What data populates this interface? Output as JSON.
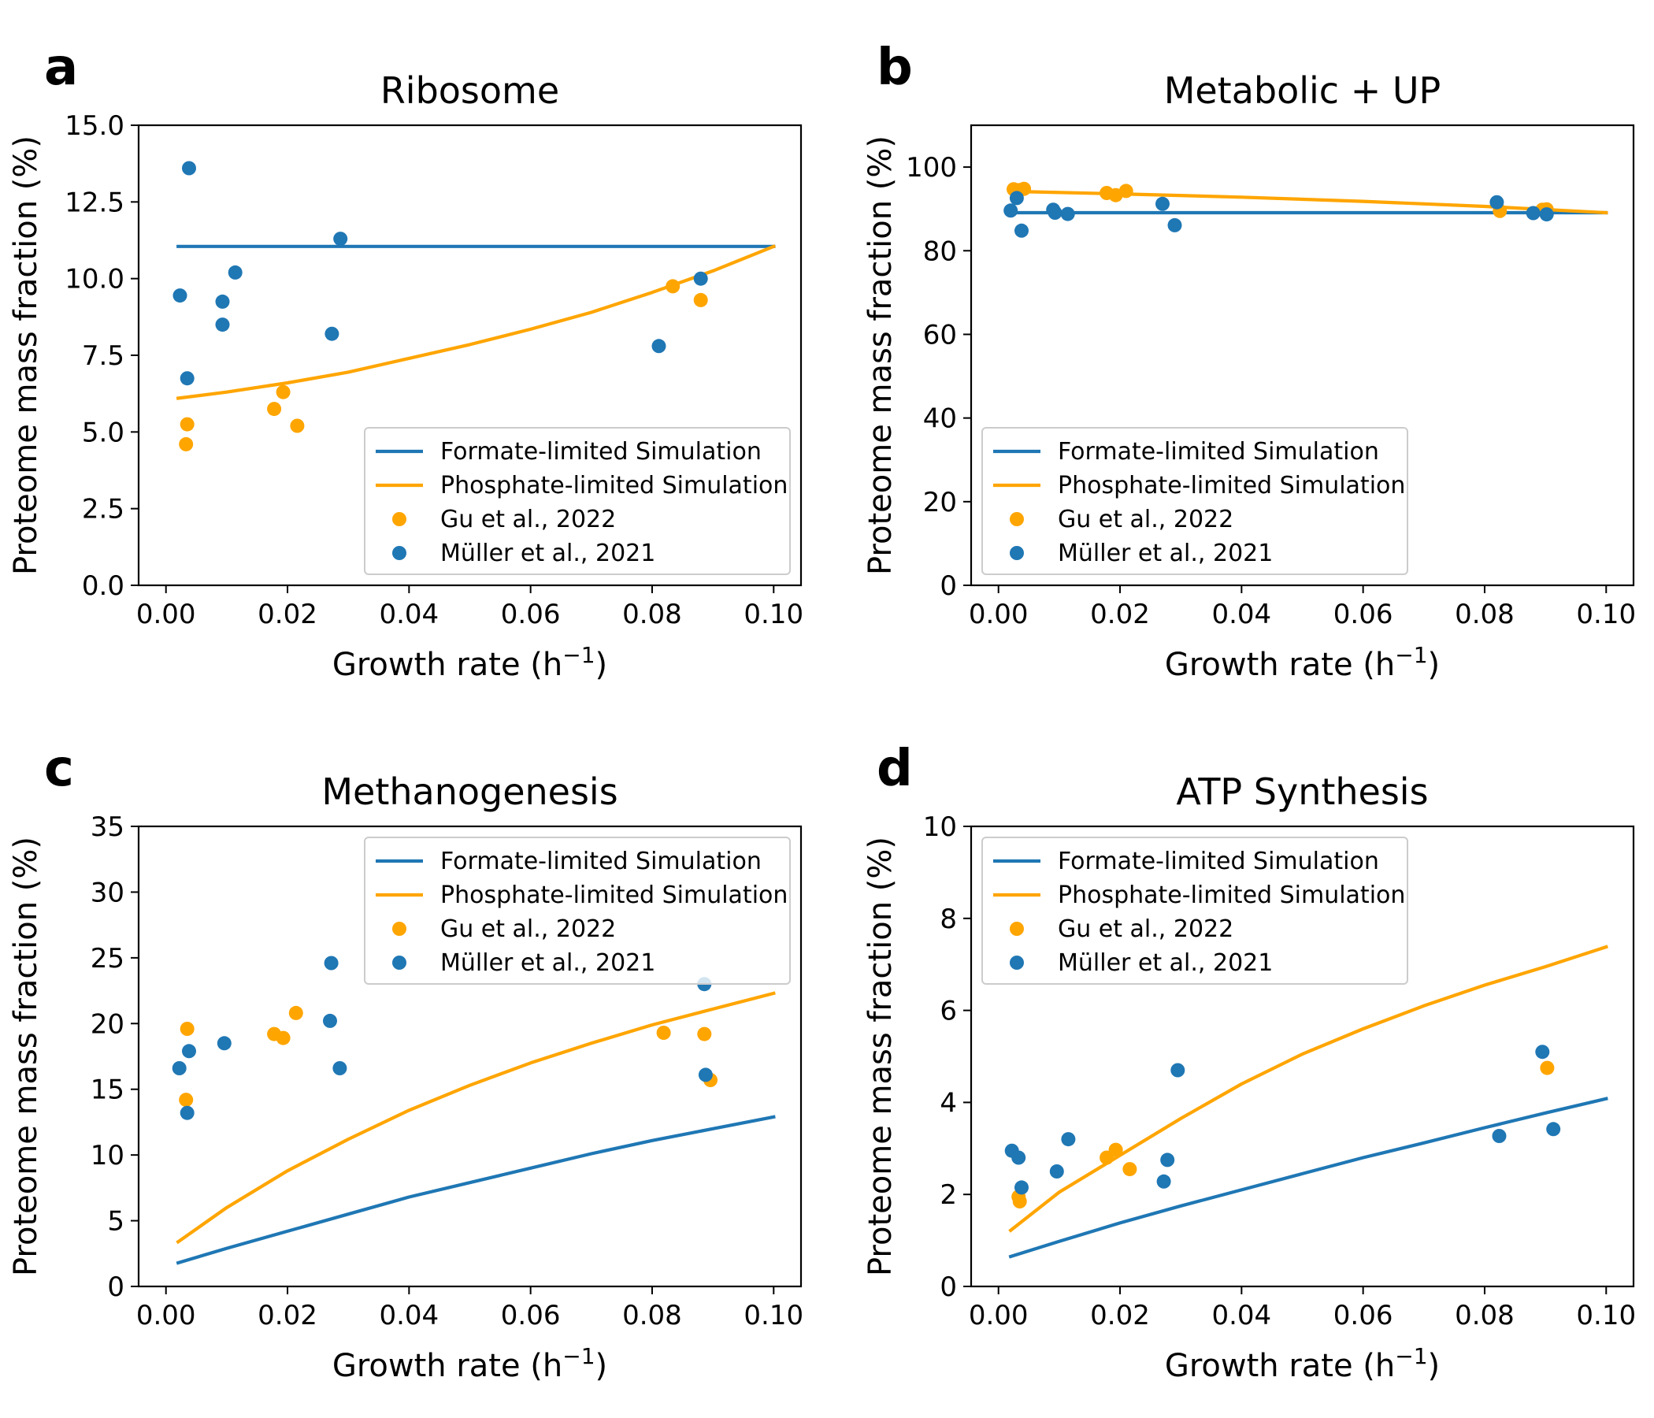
{
  "colors": {
    "formate": "#1f77b4",
    "phosphate": "#ffa500",
    "gu": "#ffa500",
    "muller": "#1f77b4"
  },
  "chart_data": [
    {
      "panel_label": "a",
      "type": "line",
      "title": "Ribosome",
      "xlabel": "Growth rate (h",
      "xlabel_sup": "−1",
      "xlabel_end": ")",
      "ylabel": "Proteome mass fraction (%)",
      "xlim": [
        -0.0045,
        0.1045
      ],
      "ylim": [
        0,
        15
      ],
      "xticks": [
        0.0,
        0.02,
        0.04,
        0.06,
        0.08,
        0.1
      ],
      "xtick_labels": [
        "0.00",
        "0.02",
        "0.04",
        "0.06",
        "0.08",
        "0.10"
      ],
      "yticks": [
        0,
        2.5,
        5,
        7.5,
        10,
        12.5,
        15
      ],
      "ytick_labels": [
        "0.0",
        "2.5",
        "5.0",
        "7.5",
        "10.0",
        "12.5",
        "15.0"
      ],
      "legend_position": "lower-right",
      "series": [
        {
          "name": "Formate-limited Simulation",
          "kind": "line",
          "color": "#1f77b4",
          "x": [
            0.002,
            0.1
          ],
          "y": [
            11.05,
            11.05
          ]
        },
        {
          "name": "Phosphate-limited Simulation",
          "kind": "line",
          "color": "#ffa500",
          "x": [
            0.002,
            0.01,
            0.02,
            0.03,
            0.04,
            0.05,
            0.06,
            0.07,
            0.08,
            0.09,
            0.1
          ],
          "y": [
            6.1,
            6.3,
            6.6,
            6.95,
            7.4,
            7.85,
            8.35,
            8.9,
            9.55,
            10.25,
            11.05
          ]
        },
        {
          "name": "Gu et al., 2022",
          "kind": "scatter",
          "color": "#ffa500",
          "x": [
            0.0035,
            0.0033,
            0.0178,
            0.0193,
            0.0216,
            0.0834,
            0.088
          ],
          "y": [
            5.25,
            4.6,
            5.75,
            6.3,
            5.2,
            9.75,
            9.3
          ]
        },
        {
          "name": "Müller et al., 2021",
          "kind": "scatter",
          "color": "#1f77b4",
          "x": [
            0.0038,
            0.0023,
            0.0035,
            0.0093,
            0.0093,
            0.0114,
            0.0273,
            0.0287,
            0.0811,
            0.088
          ],
          "y": [
            13.6,
            9.45,
            6.75,
            9.25,
            8.5,
            10.2,
            8.2,
            11.3,
            7.8,
            10.0
          ]
        }
      ]
    },
    {
      "panel_label": "b",
      "type": "line",
      "title": "Metabolic + UP",
      "xlabel": "Growth rate (h",
      "xlabel_sup": "−1",
      "xlabel_end": ")",
      "ylabel": "Proteome mass fraction (%)",
      "xlim": [
        -0.0045,
        0.1045
      ],
      "ylim": [
        0,
        110
      ],
      "xticks": [
        0.0,
        0.02,
        0.04,
        0.06,
        0.08,
        0.1
      ],
      "xtick_labels": [
        "0.00",
        "0.02",
        "0.04",
        "0.06",
        "0.08",
        "0.10"
      ],
      "yticks": [
        0,
        20,
        40,
        60,
        80,
        100
      ],
      "ytick_labels": [
        "0",
        "20",
        "40",
        "60",
        "80",
        "100"
      ],
      "legend_position": "lower-left",
      "series": [
        {
          "name": "Formate-limited Simulation",
          "kind": "line",
          "color": "#1f77b4",
          "x": [
            0.002,
            0.1
          ],
          "y": [
            89.1,
            89.1
          ]
        },
        {
          "name": "Phosphate-limited Simulation",
          "kind": "line",
          "color": "#ffa500",
          "x": [
            0.002,
            0.02,
            0.04,
            0.06,
            0.08,
            0.1
          ],
          "y": [
            94.2,
            93.6,
            92.8,
            91.8,
            90.6,
            89.1
          ]
        },
        {
          "name": "Gu et al., 2022",
          "kind": "scatter",
          "color": "#ffa500",
          "x": [
            0.0025,
            0.0035,
            0.0042,
            0.0178,
            0.0193,
            0.021,
            0.0825,
            0.0895,
            0.0902
          ],
          "y": [
            94.7,
            94.5,
            94.8,
            93.8,
            93.3,
            94.3,
            89.5,
            89.8,
            89.9
          ]
        },
        {
          "name": "Müller et al., 2021",
          "kind": "scatter",
          "color": "#1f77b4",
          "x": [
            0.002,
            0.003,
            0.0038,
            0.009,
            0.0093,
            0.0114,
            0.027,
            0.029,
            0.082,
            0.088,
            0.0902
          ],
          "y": [
            89.6,
            92.6,
            84.8,
            89.8,
            89.1,
            88.8,
            91.2,
            86.1,
            91.6,
            89.0,
            88.7
          ]
        }
      ]
    },
    {
      "panel_label": "c",
      "type": "line",
      "title": "Methanogenesis",
      "xlabel": "Growth rate (h",
      "xlabel_sup": "−1",
      "xlabel_end": ")",
      "ylabel": "Proteome mass fraction (%)",
      "xlim": [
        -0.0045,
        0.1045
      ],
      "ylim": [
        0,
        35
      ],
      "xticks": [
        0.0,
        0.02,
        0.04,
        0.06,
        0.08,
        0.1
      ],
      "xtick_labels": [
        "0.00",
        "0.02",
        "0.04",
        "0.06",
        "0.08",
        "0.10"
      ],
      "yticks": [
        0,
        5,
        10,
        15,
        20,
        25,
        30,
        35
      ],
      "ytick_labels": [
        "0",
        "5",
        "10",
        "15",
        "20",
        "25",
        "30",
        "35"
      ],
      "legend_position": "upper-right",
      "series": [
        {
          "name": "Formate-limited Simulation",
          "kind": "line",
          "color": "#1f77b4",
          "x": [
            0.002,
            0.01,
            0.02,
            0.03,
            0.04,
            0.05,
            0.06,
            0.07,
            0.08,
            0.09,
            0.1
          ],
          "y": [
            1.8,
            2.9,
            4.2,
            5.5,
            6.8,
            7.9,
            9.0,
            10.1,
            11.1,
            12.0,
            12.9
          ]
        },
        {
          "name": "Phosphate-limited Simulation",
          "kind": "line",
          "color": "#ffa500",
          "x": [
            0.002,
            0.01,
            0.02,
            0.03,
            0.04,
            0.05,
            0.06,
            0.07,
            0.08,
            0.09,
            0.1
          ],
          "y": [
            3.4,
            6.0,
            8.8,
            11.2,
            13.4,
            15.3,
            17.0,
            18.5,
            19.9,
            21.1,
            22.3
          ]
        },
        {
          "name": "Gu et al., 2022",
          "kind": "scatter",
          "color": "#ffa500",
          "x": [
            0.0035,
            0.0033,
            0.0178,
            0.0193,
            0.0214,
            0.0819,
            0.0886,
            0.0896
          ],
          "y": [
            19.6,
            14.2,
            19.2,
            18.9,
            20.8,
            19.3,
            19.2,
            15.7
          ]
        },
        {
          "name": "Müller et al., 2021",
          "kind": "scatter",
          "color": "#1f77b4",
          "x": [
            0.0022,
            0.0038,
            0.0035,
            0.0096,
            0.0272,
            0.027,
            0.0286,
            0.0886,
            0.0888
          ],
          "y": [
            16.6,
            17.9,
            13.2,
            18.5,
            24.6,
            20.2,
            16.6,
            23.0,
            16.1
          ]
        }
      ]
    },
    {
      "panel_label": "d",
      "type": "line",
      "title": "ATP Synthesis",
      "xlabel": "Growth rate (h",
      "xlabel_sup": "−1",
      "xlabel_end": ")",
      "ylabel": "Proteome mass fraction (%)",
      "xlim": [
        -0.0045,
        0.1045
      ],
      "ylim": [
        0,
        10
      ],
      "xticks": [
        0.0,
        0.02,
        0.04,
        0.06,
        0.08,
        0.1
      ],
      "xtick_labels": [
        "0.00",
        "0.02",
        "0.04",
        "0.06",
        "0.08",
        "0.10"
      ],
      "yticks": [
        0,
        2,
        4,
        6,
        8,
        10
      ],
      "ytick_labels": [
        "0",
        "2",
        "4",
        "6",
        "8",
        "10"
      ],
      "legend_position": "upper-left",
      "series": [
        {
          "name": "Formate-limited Simulation",
          "kind": "line",
          "color": "#1f77b4",
          "x": [
            0.002,
            0.01,
            0.02,
            0.03,
            0.04,
            0.05,
            0.06,
            0.07,
            0.08,
            0.09,
            0.1
          ],
          "y": [
            0.65,
            0.98,
            1.38,
            1.75,
            2.1,
            2.45,
            2.8,
            3.12,
            3.45,
            3.77,
            4.08
          ]
        },
        {
          "name": "Phosphate-limited Simulation",
          "kind": "line",
          "color": "#ffa500",
          "x": [
            0.002,
            0.01,
            0.02,
            0.03,
            0.04,
            0.05,
            0.06,
            0.07,
            0.08,
            0.09,
            0.1
          ],
          "y": [
            1.22,
            2.05,
            2.85,
            3.65,
            4.4,
            5.05,
            5.6,
            6.1,
            6.55,
            6.95,
            7.38
          ]
        },
        {
          "name": "Gu et al., 2022",
          "kind": "scatter",
          "color": "#ffa500",
          "x": [
            0.0035,
            0.0033,
            0.0178,
            0.0193,
            0.0216,
            0.0903
          ],
          "y": [
            1.85,
            1.95,
            2.8,
            2.97,
            2.55,
            4.75
          ]
        },
        {
          "name": "Müller et al., 2021",
          "kind": "scatter",
          "color": "#1f77b4",
          "x": [
            0.0022,
            0.0033,
            0.0038,
            0.0096,
            0.0115,
            0.0272,
            0.0278,
            0.0295,
            0.0824,
            0.0895,
            0.0913
          ],
          "y": [
            2.95,
            2.8,
            2.15,
            2.5,
            3.2,
            2.28,
            2.75,
            4.7,
            3.27,
            5.1,
            3.42
          ]
        }
      ]
    }
  ]
}
